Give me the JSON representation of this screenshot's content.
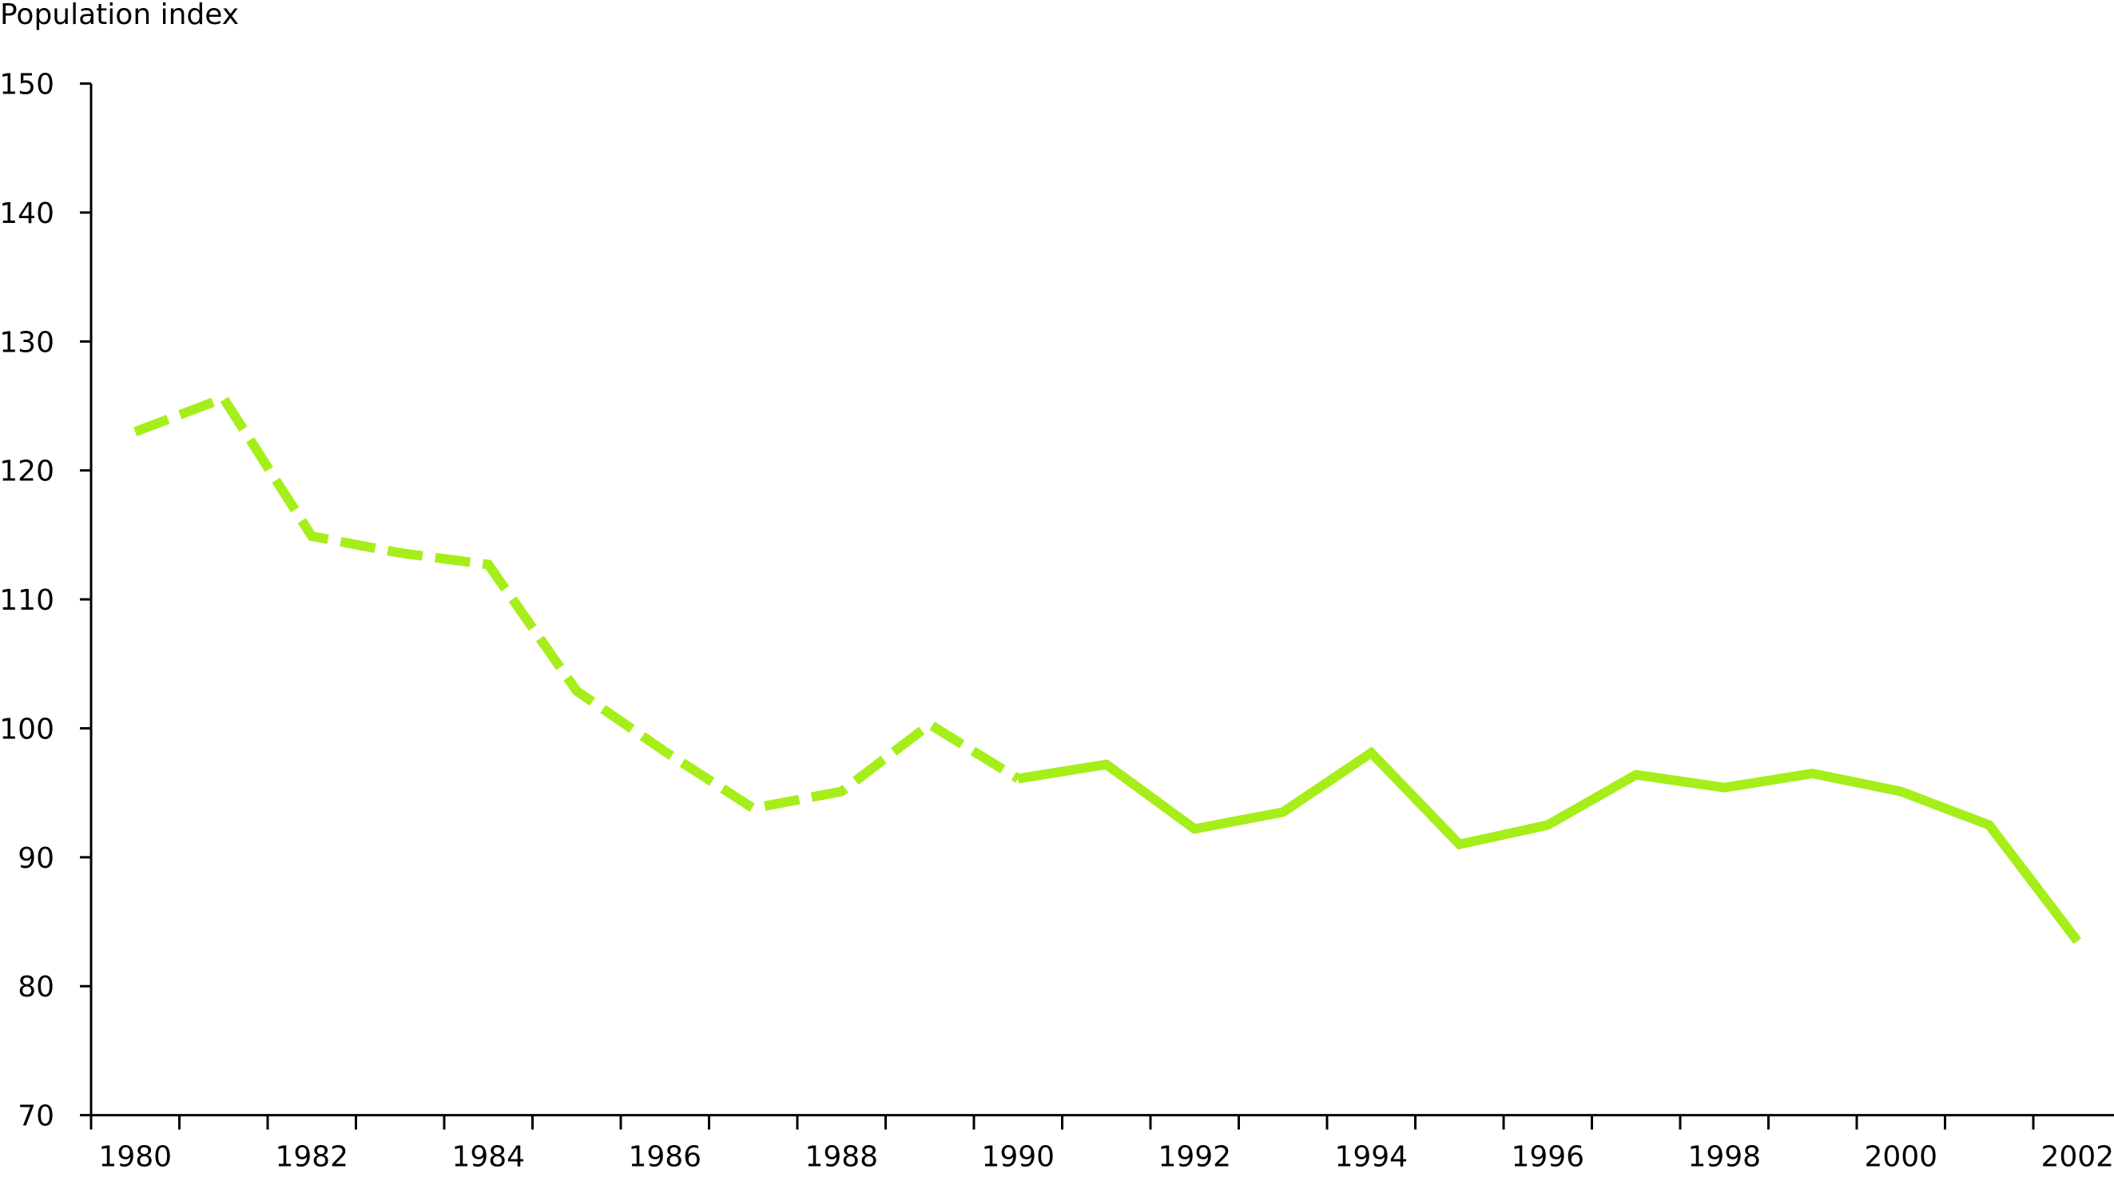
{
  "chart_data": {
    "type": "line",
    "title": "",
    "ylabel": "Population index",
    "xlabel": "",
    "ylim": [
      70,
      150
    ],
    "yticks": [
      70,
      80,
      90,
      100,
      110,
      120,
      130,
      140,
      150
    ],
    "xticklabels": [
      "1980",
      "1982",
      "1984",
      "1986",
      "1988",
      "1990",
      "1992",
      "1994",
      "1996",
      "1998",
      "2000",
      "2002"
    ],
    "grid": false,
    "line_color": "#a6ee1a",
    "x": [
      1980,
      1981,
      1982,
      1983,
      1984,
      1985,
      1986,
      1987,
      1988,
      1989,
      1990,
      1991,
      1992,
      1993,
      1994,
      1995,
      1996,
      1997,
      1998,
      1999,
      2000,
      2001,
      2002
    ],
    "values": [
      123.0,
      125.6,
      114.9,
      113.6,
      112.7,
      102.9,
      98.2,
      93.8,
      95.1,
      100.3,
      96.1,
      97.2,
      92.2,
      93.5,
      98.1,
      91.0,
      92.5,
      96.4,
      95.4,
      96.5,
      95.1,
      92.5,
      83.5
    ],
    "dashed_through": 1990
  }
}
